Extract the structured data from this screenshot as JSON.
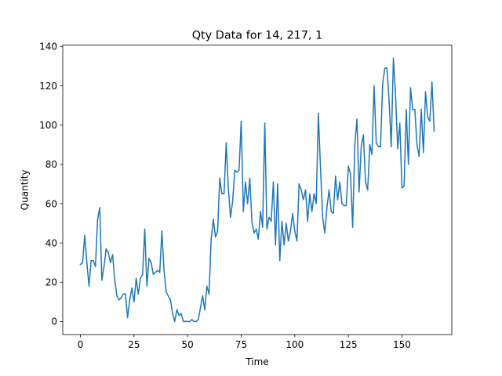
{
  "chart_data": {
    "type": "line",
    "title": "Qty Data for 14, 217, 1",
    "xlabel": "Time",
    "ylabel": "Quantity",
    "xlim": [
      -8.25,
      173.25
    ],
    "ylim": [
      -6.7,
      140.7
    ],
    "xticks": [
      0,
      25,
      50,
      75,
      100,
      125,
      150
    ],
    "yticks": [
      0,
      20,
      40,
      60,
      80,
      100,
      120,
      140
    ],
    "grid": false,
    "legend": "none",
    "series": [
      {
        "color": "#1f77b4",
        "x": [
          0,
          1,
          2,
          3,
          4,
          5,
          6,
          7,
          8,
          9,
          10,
          11,
          12,
          13,
          14,
          15,
          16,
          17,
          18,
          19,
          20,
          21,
          22,
          23,
          24,
          25,
          26,
          27,
          28,
          29,
          30,
          31,
          32,
          33,
          34,
          35,
          36,
          37,
          38,
          39,
          40,
          41,
          42,
          43,
          44,
          45,
          46,
          47,
          48,
          49,
          50,
          51,
          52,
          53,
          54,
          55,
          56,
          57,
          58,
          59,
          60,
          61,
          62,
          63,
          64,
          65,
          66,
          67,
          68,
          69,
          70,
          71,
          72,
          73,
          74,
          75,
          76,
          77,
          78,
          79,
          80,
          81,
          82,
          83,
          84,
          85,
          86,
          87,
          88,
          89,
          90,
          91,
          92,
          93,
          94,
          95,
          96,
          97,
          98,
          99,
          100,
          101,
          102,
          103,
          104,
          105,
          106,
          107,
          108,
          109,
          110,
          111,
          112,
          113,
          114,
          115,
          116,
          117,
          118,
          119,
          120,
          121,
          122,
          123,
          124,
          125,
          126,
          127,
          128,
          129,
          130,
          131,
          132,
          133,
          134,
          135,
          136,
          137,
          138,
          139,
          140,
          141,
          142,
          143,
          144,
          145,
          146,
          147,
          148,
          149,
          150,
          151,
          152,
          153,
          154,
          155,
          156,
          157,
          158,
          159,
          160,
          161,
          162,
          163,
          164,
          165
        ],
        "values": [
          29,
          30,
          44,
          30,
          18,
          31,
          31,
          28,
          52,
          58,
          21,
          28,
          37,
          35,
          30,
          34,
          21,
          13,
          11,
          12,
          14,
          14,
          2,
          11,
          17,
          10,
          22,
          14,
          22,
          24,
          47,
          18,
          32,
          30,
          24,
          25,
          26,
          25,
          46,
          26,
          15,
          13,
          11,
          4,
          0,
          6,
          3,
          4,
          0,
          0,
          0,
          0,
          1,
          0,
          0,
          1,
          7,
          13,
          6,
          18,
          14,
          42,
          52,
          43,
          46,
          73,
          65,
          65,
          91,
          68,
          53,
          61,
          77,
          76,
          77,
          102,
          56,
          71,
          60,
          73,
          51,
          45,
          47,
          42,
          56,
          48,
          101,
          47,
          53,
          51,
          71,
          39,
          70,
          31,
          51,
          39,
          50,
          41,
          46,
          55,
          46,
          41,
          70,
          67,
          62,
          67,
          51,
          65,
          56,
          65,
          60,
          106,
          78,
          53,
          45,
          58,
          67,
          56,
          55,
          74,
          62,
          71,
          60,
          59,
          59,
          79,
          75,
          48,
          90,
          103,
          66,
          89,
          95,
          71,
          67,
          90,
          85,
          120,
          91,
          89,
          89,
          121,
          129,
          129,
          112,
          89,
          134,
          116,
          88,
          101,
          68,
          69,
          108,
          80,
          119,
          108,
          108,
          90,
          84,
          108,
          86,
          117,
          104,
          102,
          122,
          97
        ]
      }
    ]
  }
}
